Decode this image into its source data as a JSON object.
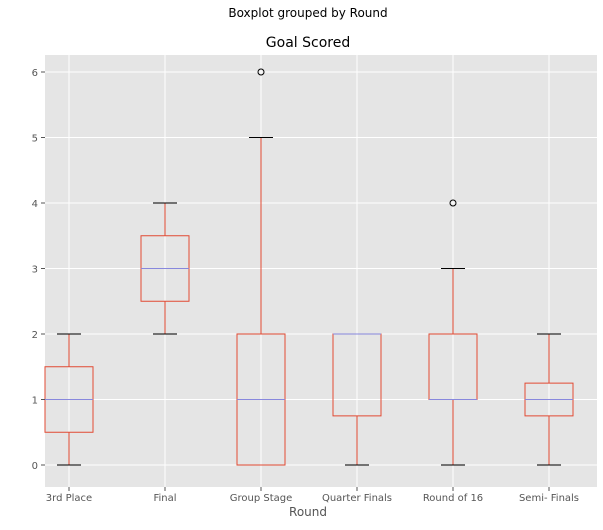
{
  "chart_data": {
    "type": "boxplot",
    "suptitle": "Boxplot grouped by Round",
    "title": "Goal Scored",
    "xlabel": "Round",
    "ylabel": "",
    "categories": [
      "3rd Place",
      "Final",
      "Group Stage",
      "Quarter Finals",
      "Round of 16",
      "Semi- Finals"
    ],
    "boxes": [
      {
        "whisker_low": 0,
        "q1": 0.5,
        "median": 1,
        "q3": 1.5,
        "whisker_high": 2,
        "outliers": []
      },
      {
        "whisker_low": 2,
        "q1": 2.5,
        "median": 3,
        "q3": 3.5,
        "whisker_high": 4,
        "outliers": []
      },
      {
        "whisker_low": 0,
        "q1": 0,
        "median": 1,
        "q3": 2,
        "whisker_high": 5,
        "outliers": [
          6
        ]
      },
      {
        "whisker_low": 0,
        "q1": 0.75,
        "median": 2,
        "q3": 2,
        "whisker_high": 2,
        "outliers": []
      },
      {
        "whisker_low": 0,
        "q1": 1,
        "median": 1,
        "q3": 2,
        "whisker_high": 3,
        "outliers": [
          4
        ]
      },
      {
        "whisker_low": 0,
        "q1": 0.75,
        "median": 1,
        "q3": 1.25,
        "whisker_high": 2,
        "outliers": []
      }
    ],
    "yticks": [
      0,
      1,
      2,
      3,
      4,
      5,
      6
    ],
    "ylim": [
      -0.3,
      6.3
    ],
    "grid": true,
    "colors": {
      "background": "#e5e5e5",
      "grid": "#ffffff",
      "box": "#e24a33",
      "median": "#8eba42",
      "median_line": "#8888dd",
      "cap": "#000000"
    }
  }
}
